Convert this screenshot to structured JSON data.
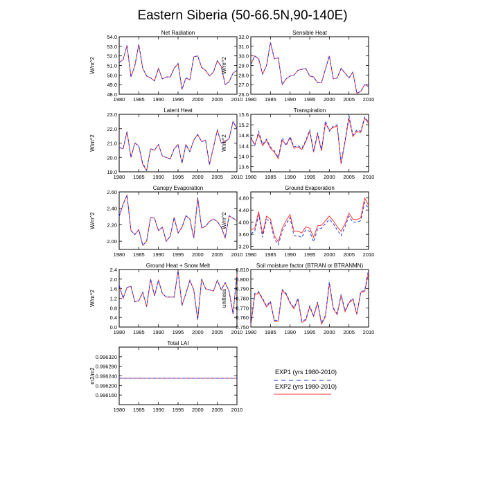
{
  "page_title": "Eastern Siberia (50-66.5N,90-140E)",
  "legend": {
    "exp1": "EXP1 (yrs 1980-2010)",
    "exp2": "EXP2 (yrs 1980-2010)",
    "colors": {
      "exp1": "#2233dd",
      "exp2": "#ff3333"
    }
  },
  "chart_data": [
    {
      "type": "line",
      "title": "Net Radiation",
      "ylabel": "W/m^2",
      "xlim": [
        1980,
        2010
      ],
      "ylim": [
        48.0,
        54.0
      ],
      "yticks": [
        48.0,
        49.0,
        50.0,
        51.0,
        52.0,
        53.0,
        54.0
      ],
      "ytick_decimals": 1,
      "xticks": [
        1980,
        1985,
        1990,
        1995,
        2000,
        2005,
        2010
      ],
      "x_start": 1980,
      "series": [
        {
          "name": "EXP1 (yrs 1980-2010)",
          "values": [
            51.3,
            51.6,
            53.1,
            49.8,
            51.0,
            53.2,
            50.7,
            49.9,
            49.7,
            49.4,
            50.7,
            49.6,
            49.8,
            49.8,
            50.7,
            51.2,
            48.5,
            49.7,
            49.5,
            51.9,
            52.0,
            50.8,
            50.5,
            49.9,
            50.3,
            51.5,
            50.9,
            49.0,
            49.3,
            50.2,
            50.5
          ]
        },
        {
          "name": "EXP2 (yrs 1980-2010)",
          "values": [
            51.3,
            51.6,
            53.1,
            49.8,
            51.0,
            53.2,
            50.7,
            49.9,
            49.7,
            49.4,
            50.7,
            49.6,
            49.8,
            49.8,
            50.7,
            51.2,
            48.5,
            49.7,
            49.5,
            51.9,
            52.0,
            50.8,
            50.5,
            49.9,
            50.3,
            51.5,
            50.9,
            49.0,
            49.3,
            50.2,
            50.5
          ]
        }
      ]
    },
    {
      "type": "line",
      "title": "Sensible Heat",
      "ylabel": "W/m^2",
      "xlim": [
        1980,
        2010
      ],
      "ylim": [
        26.0,
        32.0
      ],
      "yticks": [
        26.0,
        27.0,
        28.0,
        29.0,
        30.0,
        31.0,
        32.0
      ],
      "ytick_decimals": 1,
      "xticks": [
        1980,
        1985,
        1990,
        1995,
        2000,
        2005,
        2010
      ],
      "x_start": 1980,
      "series": [
        {
          "name": "EXP1 (yrs 1980-2010)",
          "values": [
            29.1,
            30.0,
            29.7,
            28.1,
            29.0,
            31.4,
            29.7,
            29.8,
            27.0,
            27.6,
            27.9,
            28.0,
            28.5,
            28.6,
            28.7,
            27.9,
            27.8,
            27.2,
            27.2,
            28.6,
            30.0,
            27.6,
            27.7,
            28.7,
            28.2,
            27.7,
            28.3,
            26.1,
            26.3,
            27.0,
            26.8
          ]
        },
        {
          "name": "EXP2 (yrs 1980-2010)",
          "values": [
            29.1,
            30.0,
            29.7,
            28.1,
            29.0,
            31.4,
            29.7,
            29.8,
            27.0,
            27.6,
            27.9,
            28.0,
            28.5,
            28.6,
            28.7,
            27.9,
            27.8,
            27.2,
            27.2,
            28.6,
            30.0,
            27.6,
            27.7,
            28.7,
            28.2,
            27.7,
            28.3,
            26.1,
            26.3,
            27.0,
            26.8
          ]
        }
      ]
    },
    {
      "type": "line",
      "title": "Latent Heat",
      "ylabel": "W/m^2",
      "xlim": [
        1980,
        2010
      ],
      "ylim": [
        19.0,
        23.0
      ],
      "yticks": [
        19.0,
        20.0,
        21.0,
        22.0,
        23.0
      ],
      "ytick_decimals": 1,
      "xticks": [
        1980,
        1985,
        1990,
        1995,
        2000,
        2005,
        2010
      ],
      "x_start": 1980,
      "series": [
        {
          "name": "EXP1 (yrs 1980-2010)",
          "values": [
            20.7,
            20.6,
            21.8,
            20.0,
            21.0,
            20.8,
            19.6,
            19.1,
            20.6,
            20.5,
            20.9,
            20.1,
            20.0,
            19.9,
            20.6,
            20.9,
            19.6,
            20.9,
            20.4,
            21.2,
            21.6,
            21.1,
            21.2,
            19.5,
            20.7,
            21.9,
            21.0,
            21.1,
            21.3,
            22.5,
            22.0
          ]
        },
        {
          "name": "EXP2 (yrs 1980-2010)",
          "values": [
            20.7,
            20.6,
            21.8,
            20.0,
            21.0,
            20.8,
            19.5,
            19.1,
            20.6,
            20.5,
            20.9,
            20.1,
            20.0,
            19.9,
            20.6,
            20.9,
            19.6,
            20.9,
            20.4,
            21.2,
            21.6,
            21.1,
            21.2,
            19.5,
            20.7,
            21.9,
            21.0,
            21.1,
            21.3,
            22.5,
            22.0
          ]
        }
      ]
    },
    {
      "type": "line",
      "title": "Transpiration",
      "ylabel": "W/m^2",
      "xlim": [
        1980,
        2010
      ],
      "ylim": [
        13.4,
        15.6
      ],
      "yticks": [
        13.6,
        14.0,
        14.4,
        14.8,
        15.2,
        15.6
      ],
      "ytick_decimals": 1,
      "xticks": [
        1980,
        1985,
        1990,
        1995,
        2000,
        2005,
        2010
      ],
      "x_start": 1980,
      "series": [
        {
          "name": "EXP1 (yrs 1980-2010)",
          "values": [
            14.75,
            14.4,
            14.95,
            14.45,
            14.65,
            14.35,
            14.2,
            13.95,
            14.7,
            14.4,
            14.75,
            14.35,
            14.4,
            14.3,
            14.6,
            15.0,
            14.2,
            14.9,
            14.25,
            15.35,
            14.95,
            15.15,
            15.2,
            13.75,
            14.6,
            15.55,
            14.8,
            15.0,
            14.95,
            15.5,
            15.3
          ]
        },
        {
          "name": "EXP2 (yrs 1980-2010)",
          "values": [
            14.7,
            14.45,
            14.85,
            14.4,
            14.6,
            14.3,
            14.15,
            13.9,
            14.6,
            14.45,
            14.7,
            14.3,
            14.35,
            14.25,
            14.55,
            14.95,
            14.15,
            14.85,
            14.2,
            15.25,
            15.0,
            15.1,
            15.15,
            13.7,
            14.55,
            15.45,
            14.75,
            14.95,
            14.9,
            15.45,
            15.25
          ]
        }
      ]
    },
    {
      "type": "line",
      "title": "Canopy Evaporation",
      "ylabel": "W/m^2",
      "xlim": [
        1980,
        2010
      ],
      "ylim": [
        1.9,
        2.6
      ],
      "yticks": [
        2.0,
        2.2,
        2.4,
        2.6
      ],
      "ytick_decimals": 2,
      "xticks": [
        1980,
        1985,
        1990,
        1995,
        2000,
        2005,
        2010
      ],
      "x_start": 1980,
      "series": [
        {
          "name": "EXP1 (yrs 1980-2010)",
          "values": [
            2.3,
            2.45,
            2.56,
            2.13,
            2.08,
            2.14,
            1.95,
            2.0,
            2.29,
            2.28,
            2.13,
            2.17,
            2.0,
            2.06,
            2.29,
            2.1,
            2.17,
            2.31,
            2.27,
            2.04,
            2.53,
            2.16,
            2.18,
            2.24,
            2.27,
            2.24,
            2.17,
            2.04,
            2.31,
            2.28,
            2.25
          ]
        },
        {
          "name": "EXP2 (yrs 1980-2010)",
          "values": [
            2.3,
            2.45,
            2.56,
            2.13,
            2.08,
            2.14,
            1.95,
            2.0,
            2.29,
            2.28,
            2.13,
            2.17,
            2.0,
            2.06,
            2.29,
            2.1,
            2.17,
            2.31,
            2.27,
            2.04,
            2.53,
            2.16,
            2.18,
            2.24,
            2.27,
            2.24,
            2.17,
            2.04,
            2.31,
            2.28,
            2.25
          ]
        }
      ]
    },
    {
      "type": "line",
      "title": "Ground Evaporation",
      "ylabel": "W/m^2",
      "xlim": [
        1980,
        2010
      ],
      "ylim": [
        3.1,
        5.0
      ],
      "yticks": [
        3.2,
        3.6,
        4.0,
        4.4,
        4.8
      ],
      "ytick_decimals": 2,
      "xticks": [
        1980,
        1985,
        1990,
        1995,
        2000,
        2005,
        2010
      ],
      "x_start": 1980,
      "series": [
        {
          "name": "EXP1 (yrs 1980-2010)",
          "values": [
            3.62,
            3.7,
            4.25,
            3.5,
            4.1,
            4.0,
            3.45,
            3.25,
            3.7,
            3.95,
            4.15,
            3.55,
            3.55,
            3.5,
            3.75,
            3.7,
            3.35,
            3.78,
            3.8,
            3.95,
            4.1,
            3.95,
            3.75,
            3.55,
            3.85,
            4.2,
            4.0,
            4.0,
            4.05,
            4.65,
            4.45
          ]
        },
        {
          "name": "EXP2 (yrs 1980-2010)",
          "values": [
            3.75,
            3.8,
            4.35,
            3.6,
            4.2,
            4.1,
            3.55,
            3.35,
            3.8,
            4.05,
            4.25,
            3.7,
            3.7,
            3.65,
            3.85,
            3.8,
            3.5,
            3.88,
            3.9,
            4.05,
            4.2,
            4.05,
            3.85,
            3.7,
            3.95,
            4.3,
            4.1,
            4.08,
            4.15,
            4.8,
            4.55
          ]
        }
      ]
    },
    {
      "type": "line",
      "title": "Ground Heat + Snow Melt",
      "ylabel": "W/m^2",
      "xlim": [
        1980,
        2010
      ],
      "ylim": [
        0.0,
        2.4
      ],
      "yticks": [
        0.0,
        0.4,
        0.8,
        1.2,
        1.6,
        2.0,
        2.4
      ],
      "ytick_decimals": 1,
      "xticks": [
        1980,
        1985,
        1990,
        1995,
        2000,
        2005,
        2010
      ],
      "x_start": 1980,
      "series": [
        {
          "name": "EXP1 (yrs 1980-2010)",
          "values": [
            1.75,
            1.2,
            1.65,
            1.7,
            1.05,
            1.1,
            1.45,
            0.85,
            2.0,
            1.3,
            1.95,
            1.4,
            1.25,
            1.25,
            1.25,
            2.35,
            0.9,
            1.4,
            1.95,
            1.55,
            0.3,
            2.0,
            1.6,
            1.55,
            1.5,
            1.95,
            1.55,
            1.85,
            1.5,
            0.55,
            2.2
          ]
        },
        {
          "name": "EXP2 (yrs 1980-2010)",
          "values": [
            1.75,
            1.2,
            1.65,
            1.7,
            1.05,
            1.1,
            1.45,
            0.85,
            2.0,
            1.3,
            1.95,
            1.4,
            1.25,
            1.25,
            1.25,
            2.35,
            0.9,
            1.4,
            1.95,
            1.55,
            0.3,
            2.0,
            1.6,
            1.55,
            1.5,
            1.95,
            1.55,
            1.85,
            1.5,
            0.55,
            2.2
          ]
        }
      ]
    },
    {
      "type": "line",
      "title": "Soil moisture factor (BTRAN or BTRANMN)",
      "ylabel": "unitless",
      "xlim": [
        1980,
        2010
      ],
      "ylim": [
        0.75,
        0.81
      ],
      "yticks": [
        0.75,
        0.76,
        0.77,
        0.78,
        0.79,
        0.8,
        0.81
      ],
      "ytick_decimals": 3,
      "xticks": [
        1980,
        1985,
        1990,
        1995,
        2000,
        2005,
        2010
      ],
      "x_start": 1980,
      "series": [
        {
          "name": "EXP1 (yrs 1980-2010)",
          "values": [
            0.753,
            0.785,
            0.787,
            0.78,
            0.772,
            0.777,
            0.757,
            0.757,
            0.789,
            0.785,
            0.776,
            0.77,
            0.78,
            0.756,
            0.758,
            0.772,
            0.762,
            0.776,
            0.754,
            0.762,
            0.797,
            0.77,
            0.764,
            0.784,
            0.767,
            0.776,
            0.78,
            0.764,
            0.787,
            0.788,
            0.81
          ]
        },
        {
          "name": "EXP2 (yrs 1980-2010)",
          "values": [
            0.752,
            0.783,
            0.786,
            0.779,
            0.771,
            0.776,
            0.756,
            0.756,
            0.788,
            0.784,
            0.775,
            0.769,
            0.779,
            0.755,
            0.757,
            0.771,
            0.761,
            0.775,
            0.753,
            0.761,
            0.795,
            0.769,
            0.763,
            0.783,
            0.766,
            0.775,
            0.779,
            0.763,
            0.786,
            0.787,
            0.807
          ]
        }
      ]
    },
    {
      "type": "line",
      "title": "Total LAI",
      "ylabel": "m2/m2",
      "xlim": [
        1980,
        2010
      ],
      "ylim": [
        0.99612,
        0.99636
      ],
      "yticks": [
        0.99616,
        0.9962,
        0.99624,
        0.99628,
        0.99632
      ],
      "ytick_decimals": 6,
      "xticks": [
        1980,
        1985,
        1990,
        1995,
        2000,
        2005,
        2010
      ],
      "x_start": 1980,
      "series": [
        {
          "name": "EXP1 (yrs 1980-2010)",
          "values": [
            0.99623,
            0.99623,
            0.99623,
            0.99623,
            0.99623,
            0.99623,
            0.99623,
            0.99623,
            0.99623,
            0.99623,
            0.99623,
            0.99623,
            0.99623,
            0.99623,
            0.99623,
            0.99623,
            0.99623,
            0.99623,
            0.99623,
            0.99623,
            0.99623,
            0.99623,
            0.99623,
            0.99623,
            0.99623,
            0.99623,
            0.99623,
            0.99623,
            0.99623,
            0.99623,
            0.99623
          ]
        },
        {
          "name": "EXP2 (yrs 1980-2010)",
          "values": [
            0.99623,
            0.99623,
            0.99623,
            0.99623,
            0.99623,
            0.99623,
            0.99623,
            0.99623,
            0.99623,
            0.99623,
            0.99623,
            0.99623,
            0.99623,
            0.99623,
            0.99623,
            0.99623,
            0.99623,
            0.99623,
            0.99623,
            0.99623,
            0.99623,
            0.99623,
            0.99623,
            0.99623,
            0.99623,
            0.99623,
            0.99623,
            0.99623,
            0.99623,
            0.99623,
            0.99623
          ]
        }
      ]
    }
  ]
}
